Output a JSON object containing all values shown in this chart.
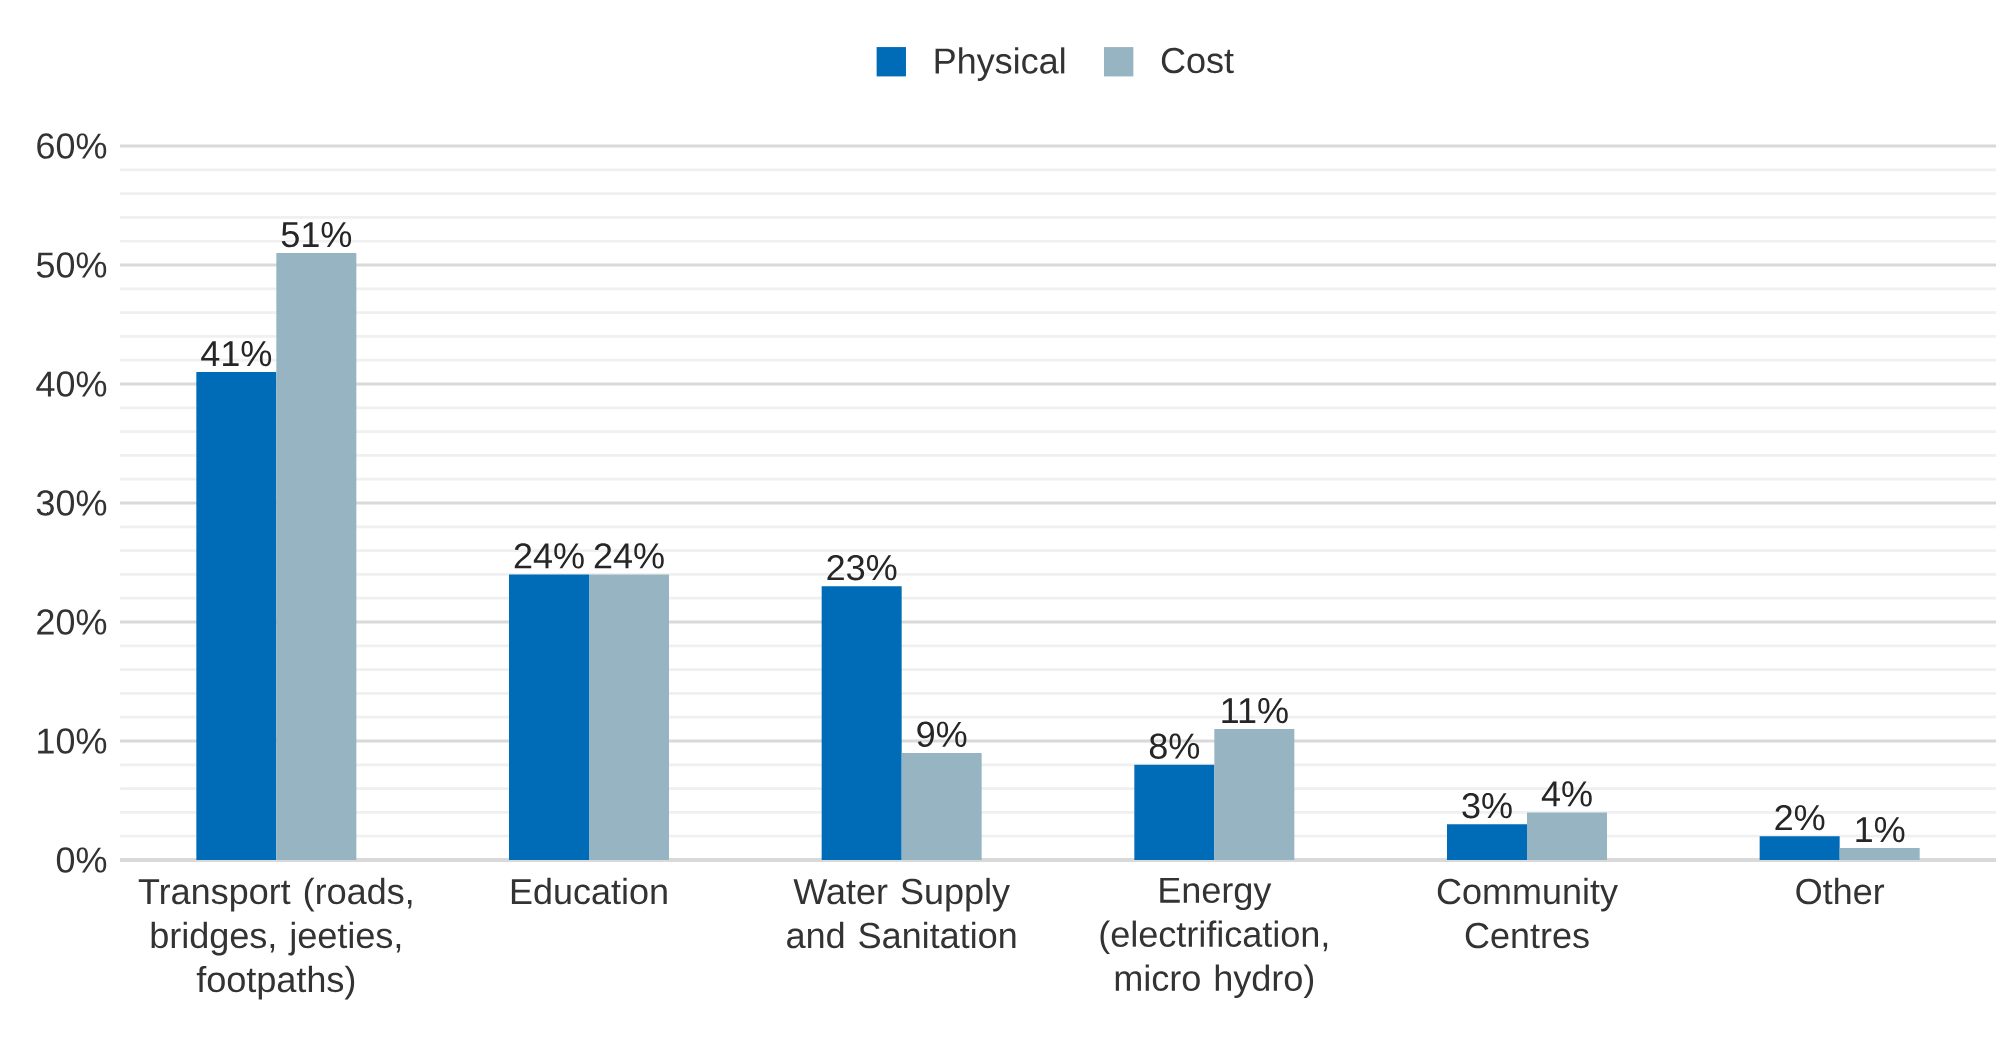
{
  "chart_data": {
    "type": "bar",
    "categories": [
      "Transport (roads, bridges, jeeties, footpaths)",
      "Education",
      "Water Supply and Sanitation",
      "Energy (electrification, micro hydro)",
      "Community Centres",
      "Other"
    ],
    "series": [
      {
        "name": "Physical",
        "color": "#006bb6",
        "values": [
          41,
          24,
          23,
          8,
          3,
          2
        ],
        "value_labels": [
          "41%",
          "24%",
          "23%",
          "8%",
          "3%",
          "2%"
        ]
      },
      {
        "name": "Cost",
        "color": "#97b4c2",
        "values": [
          51,
          24,
          9,
          11,
          4,
          1
        ],
        "value_labels": [
          "51%",
          "24%",
          "9%",
          "11%",
          "4%",
          "1%"
        ]
      }
    ],
    "ylim": [
      0,
      60
    ],
    "yticks": [
      {
        "value": 0,
        "label": "0%"
      },
      {
        "value": 2,
        "label": null
      },
      {
        "value": 4,
        "label": null
      },
      {
        "value": 6,
        "label": null
      },
      {
        "value": 8,
        "label": null
      },
      {
        "value": 10,
        "label": "10%"
      },
      {
        "value": 12,
        "label": null
      },
      {
        "value": 14,
        "label": null
      },
      {
        "value": 16,
        "label": null
      },
      {
        "value": 18,
        "label": null
      },
      {
        "value": 20,
        "label": "20%"
      },
      {
        "value": 22,
        "label": null
      },
      {
        "value": 24,
        "label": null
      },
      {
        "value": 26,
        "label": null
      },
      {
        "value": 28,
        "label": null
      },
      {
        "value": 30,
        "label": "30%"
      },
      {
        "value": 32,
        "label": null
      },
      {
        "value": 34,
        "label": null
      },
      {
        "value": 36,
        "label": null
      },
      {
        "value": 38,
        "label": null
      },
      {
        "value": 40,
        "label": "40%"
      },
      {
        "value": 42,
        "label": null
      },
      {
        "value": 44,
        "label": null
      },
      {
        "value": 46,
        "label": null
      },
      {
        "value": 48,
        "label": null
      },
      {
        "value": 50,
        "label": "50%"
      },
      {
        "value": 52,
        "label": null
      },
      {
        "value": 54,
        "label": null
      },
      {
        "value": 56,
        "label": null
      },
      {
        "value": 58,
        "label": null
      },
      {
        "value": 60,
        "label": "60%"
      }
    ],
    "grid": "y",
    "legend": "top"
  }
}
